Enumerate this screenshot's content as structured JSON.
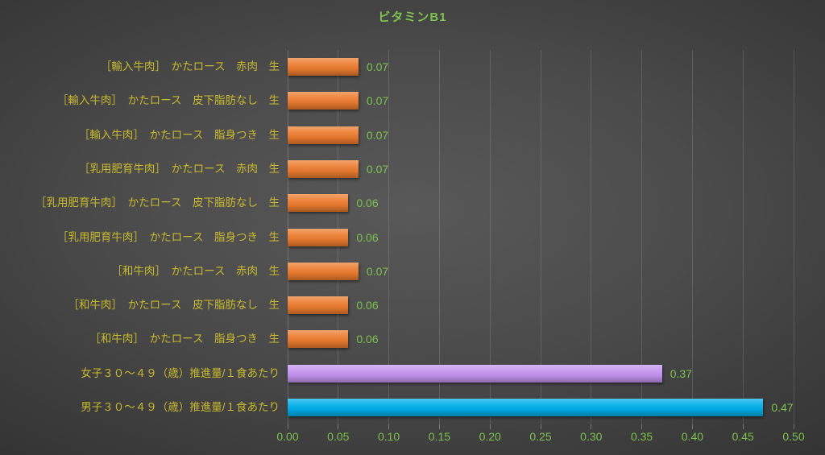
{
  "title": {
    "text": "ビタミンB1"
  },
  "colors": {
    "title_text": "#7CC24E",
    "value_text": "#7CC24E",
    "tick_text": "#7CC24E",
    "category_text": "#C8B92E",
    "orange_bar": "#EC7C2F",
    "purple_bar": "#C493EF",
    "blue_bar": "#00AEEA"
  },
  "chart_data": {
    "type": "bar",
    "orientation": "horizontal",
    "title": "ビタミンB1",
    "xlabel": "",
    "ylabel": "",
    "xlim": [
      0.0,
      0.5
    ],
    "grid": true,
    "legend": "none",
    "categories": [
      "［輸入牛肉］　かたロース　赤肉　生",
      "［輸入牛肉］　かたロース　皮下脂肪なし　生",
      "［輸入牛肉］　かたロース　脂身つき　生",
      "［乳用肥育牛肉］　かたロース　赤肉　生",
      "［乳用肥育牛肉］　かたロース　皮下脂肪なし　生",
      "［乳用肥育牛肉］　かたロース　脂身つき　生",
      "［和牛肉］　かたロース　赤肉　生",
      "［和牛肉］　かたロース　皮下脂肪なし　生",
      "［和牛肉］　かたロース　脂身つき　生",
      "女子３０～４９（歳）推進量/１食あたり",
      "男子３０～４９（歳）推進量/１食あたり"
    ],
    "values": [
      0.07,
      0.07,
      0.07,
      0.07,
      0.06,
      0.06,
      0.07,
      0.06,
      0.06,
      0.37,
      0.47
    ],
    "value_labels": [
      "0.07",
      "0.07",
      "0.07",
      "0.07",
      "0.06",
      "0.06",
      "0.07",
      "0.06",
      "0.06",
      "0.37",
      "0.47"
    ],
    "bar_colors": [
      "#EC7C2F",
      "#EC7C2F",
      "#EC7C2F",
      "#EC7C2F",
      "#EC7C2F",
      "#EC7C2F",
      "#EC7C2F",
      "#EC7C2F",
      "#EC7C2F",
      "#C493EF",
      "#00AEEA"
    ],
    "xticks": [
      "0.00",
      "0.05",
      "0.10",
      "0.15",
      "0.20",
      "0.25",
      "0.30",
      "0.35",
      "0.40",
      "0.45",
      "0.50"
    ],
    "xtick_values": [
      0.0,
      0.05,
      0.1,
      0.15,
      0.2,
      0.25,
      0.3,
      0.35,
      0.4,
      0.45,
      0.5
    ]
  }
}
